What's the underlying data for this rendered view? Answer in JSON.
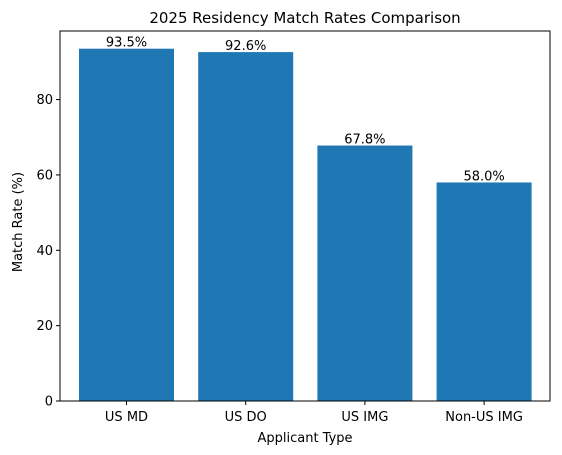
{
  "chart_data": {
    "type": "bar",
    "title": "2025 Residency Match Rates Comparison",
    "xlabel": "Applicant Type",
    "ylabel": "Match Rate (%)",
    "categories": [
      "US MD",
      "US DO",
      "US IMG",
      "Non-US IMG"
    ],
    "values": [
      93.5,
      92.6,
      67.8,
      58.0
    ],
    "value_labels": [
      "93.5%",
      "92.6%",
      "67.8%",
      "58.0%"
    ],
    "ylim": [
      0,
      98.2
    ],
    "yticks": [
      0,
      20,
      40,
      60,
      80
    ],
    "ytick_labels": [
      "0",
      "20",
      "40",
      "60",
      "80"
    ],
    "bar_color": "#1f77b4",
    "grid": false,
    "legend": "none"
  }
}
